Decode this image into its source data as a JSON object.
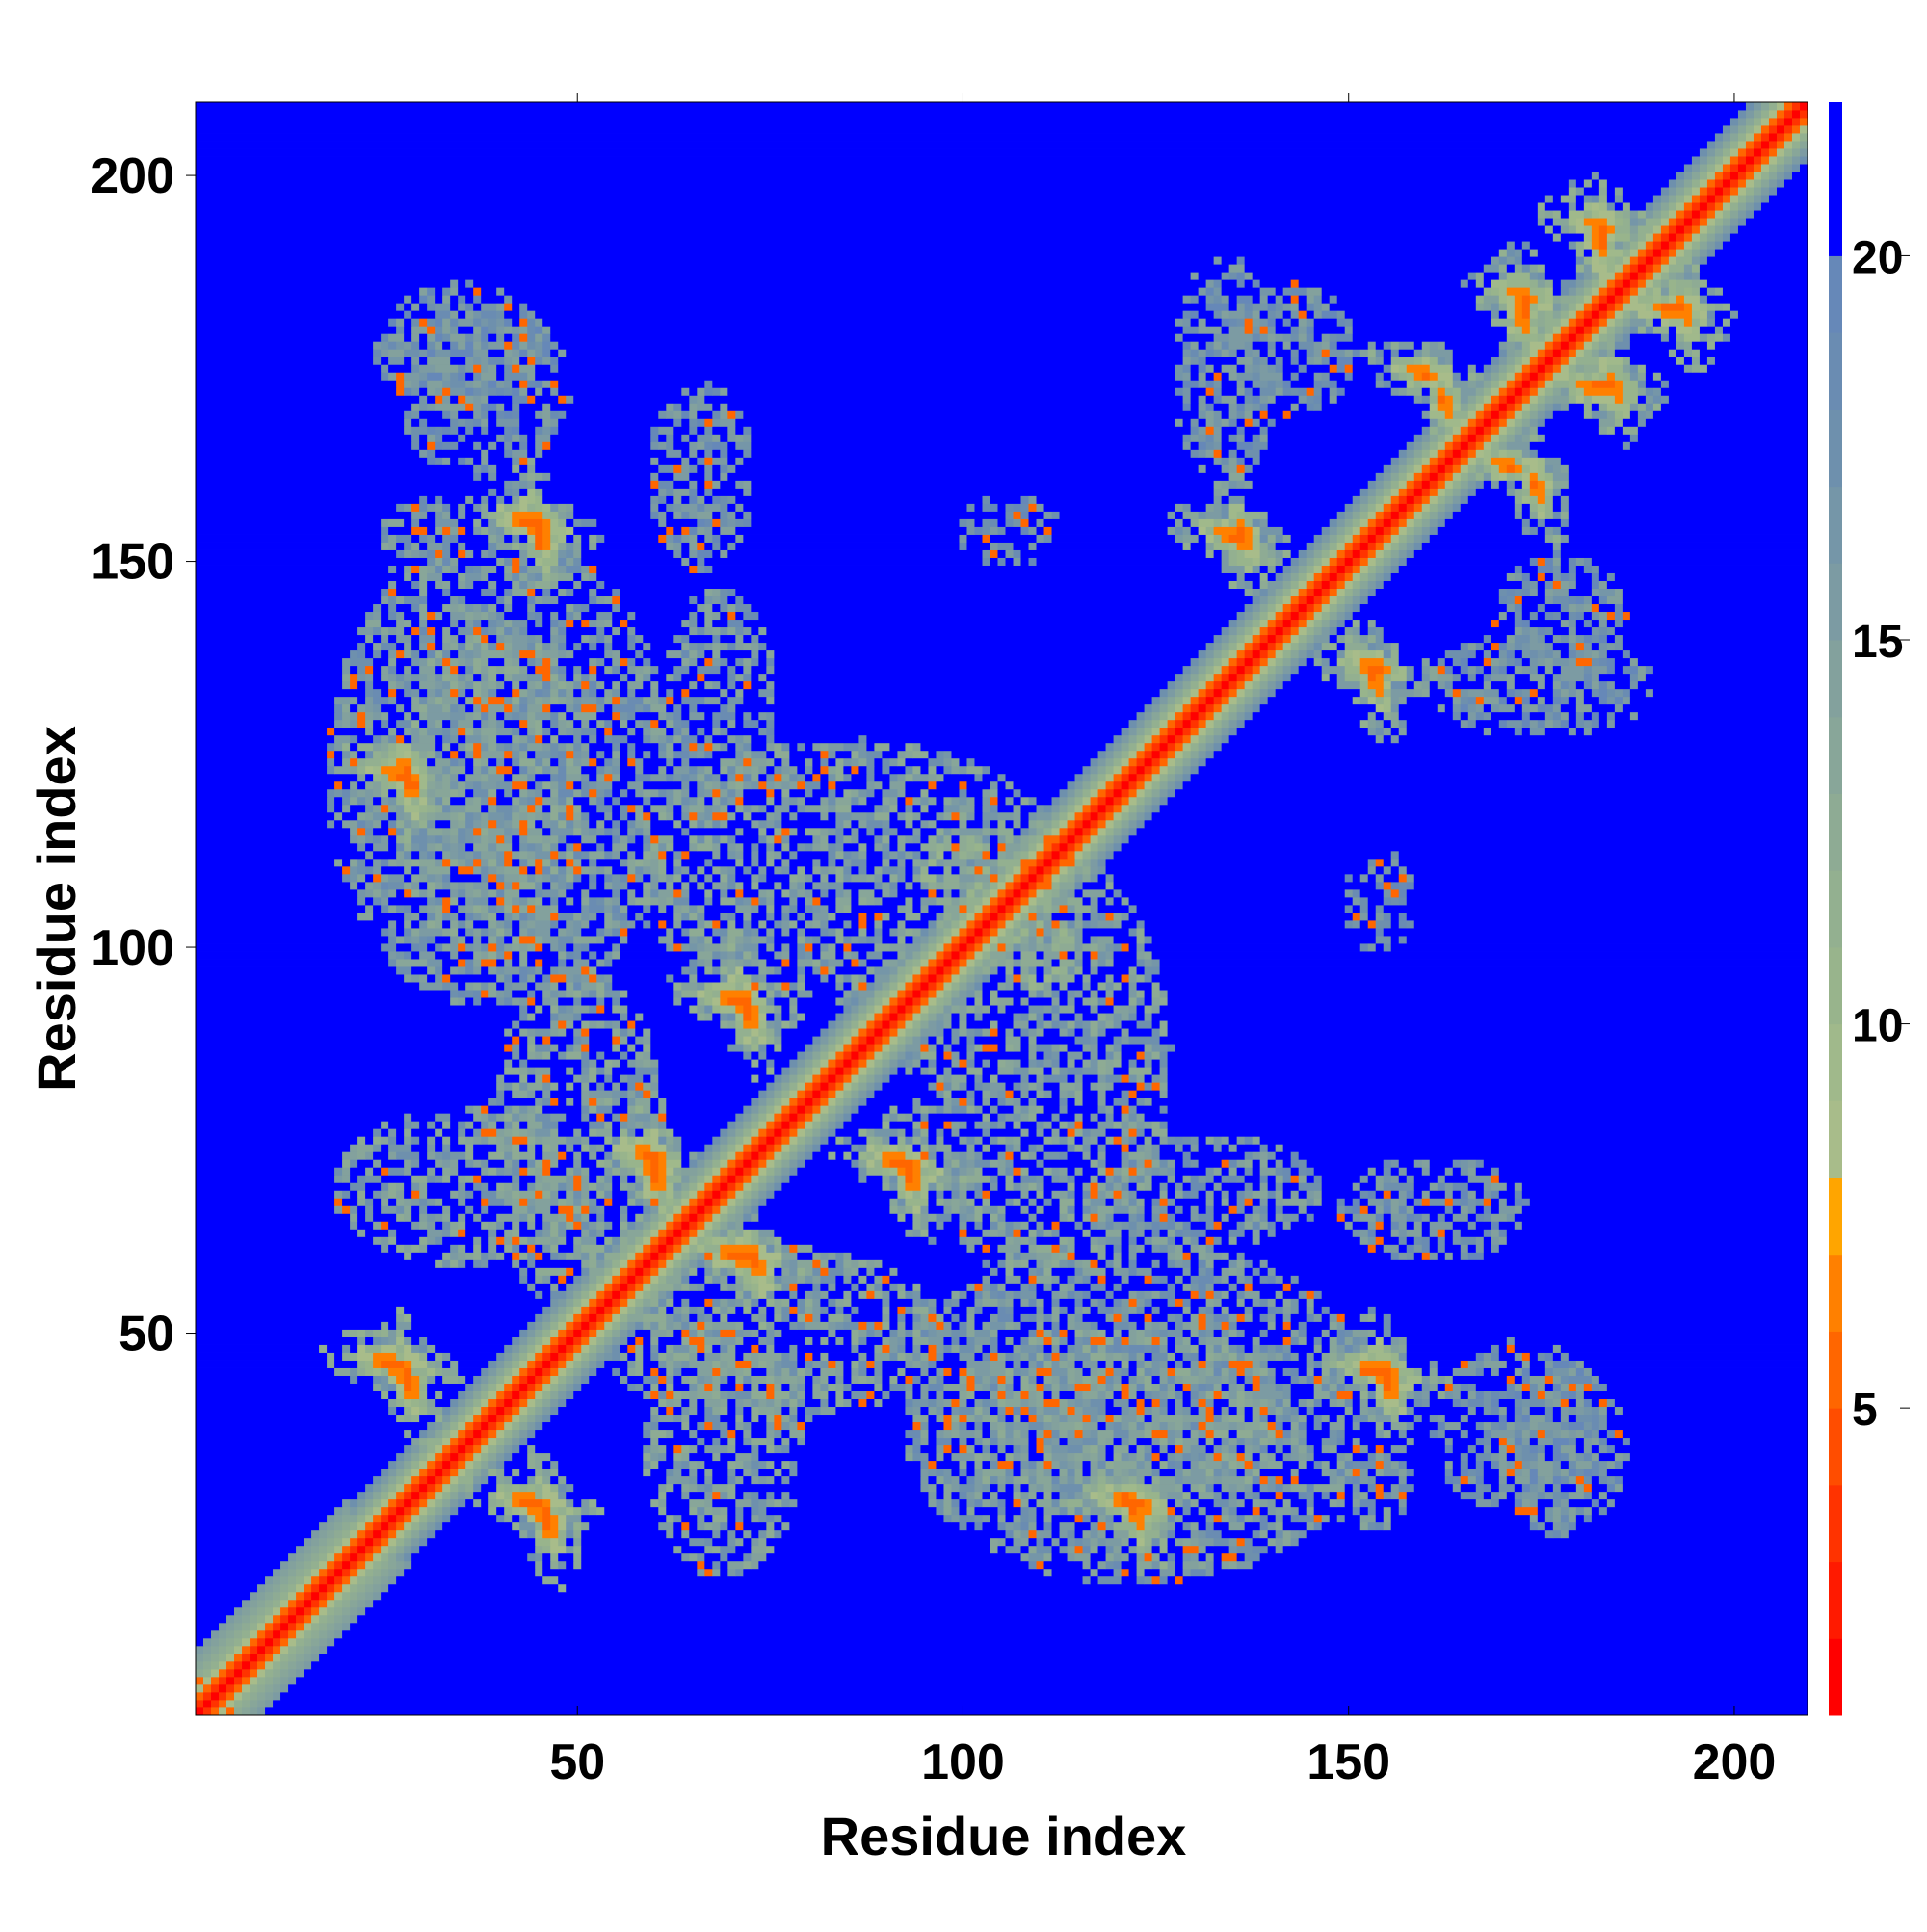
{
  "chart_data": {
    "type": "heatmap",
    "title": "",
    "xlabel": "Residue index",
    "ylabel": "Residue index",
    "x_ticks": [
      50,
      100,
      150,
      200
    ],
    "y_ticks": [
      50,
      100,
      150,
      200
    ],
    "xlim": [
      1,
      209
    ],
    "ylim": [
      1,
      209
    ],
    "n_residues": 209,
    "colorbar": {
      "ticks": [
        5,
        10,
        15,
        20
      ],
      "range": [
        1,
        22
      ],
      "levels": [
        {
          "upper": 2,
          "color": "#ff0000"
        },
        {
          "upper": 3,
          "color": "#ff1a00"
        },
        {
          "upper": 4,
          "color": "#ff3300"
        },
        {
          "upper": 5,
          "color": "#ff4d00"
        },
        {
          "upper": 6,
          "color": "#ff6600"
        },
        {
          "upper": 7,
          "color": "#ff8000"
        },
        {
          "upper": 8,
          "color": "#ffa500"
        },
        {
          "upper": 9,
          "color": "#a8bc8a"
        },
        {
          "upper": 10,
          "color": "#a0b98b"
        },
        {
          "upper": 11,
          "color": "#98b48c"
        },
        {
          "upper": 12,
          "color": "#93b090"
        },
        {
          "upper": 13,
          "color": "#8eab94"
        },
        {
          "upper": 14,
          "color": "#88a699"
        },
        {
          "upper": 15,
          "color": "#83a19d"
        },
        {
          "upper": 16,
          "color": "#7c9ba3"
        },
        {
          "upper": 17,
          "color": "#7596a8"
        },
        {
          "upper": 18,
          "color": "#6e90ad"
        },
        {
          "upper": 19,
          "color": "#6a8cb2"
        },
        {
          "upper": 20,
          "color": "#6688b8"
        },
        {
          "upper": 22,
          "color": "#0000ff"
        }
      ]
    },
    "background_value": 22,
    "diagonal_bands": [
      {
        "offset": 0,
        "value": 2
      },
      {
        "offset": 1,
        "value": 4
      },
      {
        "offset": 2,
        "value": 6
      },
      {
        "offset": 3,
        "value": 9
      },
      {
        "offset": 4,
        "value": 12
      },
      {
        "offset": 5,
        "value": 14
      },
      {
        "offset": 6,
        "value": 16
      },
      {
        "offset": 7,
        "value": 18
      }
    ],
    "contact_regions": [
      {
        "x": [
          22,
          30
        ],
        "y": [
          42,
          50
        ],
        "orientation": "anti",
        "core": 6
      },
      {
        "x": [
          40,
          48
        ],
        "y": [
          24,
          32
        ],
        "orientation": "anti",
        "core": 6
      },
      {
        "x": [
          55,
          64
        ],
        "y": [
          67,
          78
        ],
        "orientation": "anti",
        "core": 6
      },
      {
        "x": [
          65,
          76
        ],
        "y": [
          56,
          65
        ],
        "orientation": "anti",
        "core": 6
      },
      {
        "x": [
          67,
          74
        ],
        "y": [
          89,
          97
        ],
        "orientation": "anti",
        "core": 6
      },
      {
        "x": [
          88,
          96
        ],
        "y": [
          68,
          76
        ],
        "orientation": "anti",
        "core": 6
      },
      {
        "x": [
          24,
          30
        ],
        "y": [
          118,
          126
        ],
        "orientation": "anti",
        "core": 6
      },
      {
        "x": [
          40,
          48
        ],
        "y": [
          151,
          159
        ],
        "orientation": "anti",
        "core": 6
      },
      {
        "x": [
          118,
          126
        ],
        "y": [
          24,
          32
        ],
        "orientation": "anti",
        "core": 6
      },
      {
        "x": [
          150,
          158
        ],
        "y": [
          41,
          49
        ],
        "orientation": "anti",
        "core": 6
      },
      {
        "x": [
          132,
          138
        ],
        "y": [
          149,
          157
        ],
        "orientation": "anti",
        "core": 6
      },
      {
        "x": [
          150,
          157
        ],
        "y": [
          132,
          140
        ],
        "orientation": "anti",
        "core": 6
      },
      {
        "x": [
          157,
          163
        ],
        "y": [
          170,
          178
        ],
        "orientation": "anti",
        "core": 6
      },
      {
        "x": [
          168,
          174
        ],
        "y": [
          158,
          166
        ],
        "orientation": "anti",
        "core": 6
      },
      {
        "x": [
          170,
          176
        ],
        "y": [
          180,
          188
        ],
        "orientation": "anti",
        "core": 6
      },
      {
        "x": [
          178,
          186
        ],
        "y": [
          170,
          176
        ],
        "orientation": "anti",
        "core": 6
      },
      {
        "x": [
          180,
          186
        ],
        "y": [
          189,
          197
        ],
        "orientation": "anti",
        "core": 6
      },
      {
        "x": [
          188,
          195
        ],
        "y": [
          180,
          186
        ],
        "orientation": "anti",
        "core": 6
      },
      {
        "x": [
          102,
          115
        ],
        "y": [
          95,
          108
        ],
        "orientation": "cluster",
        "core": 11
      },
      {
        "x": [
          20,
          50
        ],
        "y": [
          60,
          78
        ],
        "orientation": "cluster",
        "core": 13
      },
      {
        "x": [
          55,
          95
        ],
        "y": [
          40,
          60
        ],
        "orientation": "cluster",
        "core": 13
      },
      {
        "x": [
          100,
          140
        ],
        "y": [
          28,
          50
        ],
        "orientation": "cluster",
        "core": 13
      },
      {
        "x": [
          148,
          158
        ],
        "y": [
          25,
          35
        ],
        "orientation": "cluster",
        "core": 14
      },
      {
        "x": [
          162,
          182
        ],
        "y": [
          28,
          48
        ],
        "orientation": "cluster",
        "core": 15
      },
      {
        "x": [
          162,
          188
        ],
        "y": [
          128,
          140
        ],
        "orientation": "cluster",
        "core": 15
      },
      {
        "x": [
          20,
          60
        ],
        "y": [
          95,
          150
        ],
        "orientation": "cluster",
        "core": 14
      },
      {
        "x": [
          60,
          110
        ],
        "y": [
          95,
          125
        ],
        "orientation": "cluster",
        "core": 13
      },
      {
        "x": [
          150,
          172
        ],
        "y": [
          60,
          72
        ],
        "orientation": "cluster",
        "core": 15
      },
      {
        "x": [
          118,
          145
        ],
        "y": [
          62,
          75
        ],
        "orientation": "cluster",
        "core": 14
      },
      {
        "x": [
          135,
          150
        ],
        "y": [
          170,
          185
        ],
        "orientation": "cluster",
        "core": 15
      },
      {
        "x": [
          100,
          112
        ],
        "y": [
          150,
          158
        ],
        "orientation": "cluster",
        "core": 16
      },
      {
        "x": [
          25,
          45
        ],
        "y": [
          170,
          185
        ],
        "orientation": "cluster",
        "core": 15
      },
      {
        "x": 1,
        "y": [
          1,
          10
        ],
        "orientation": "cluster",
        "core": 12
      }
    ]
  }
}
